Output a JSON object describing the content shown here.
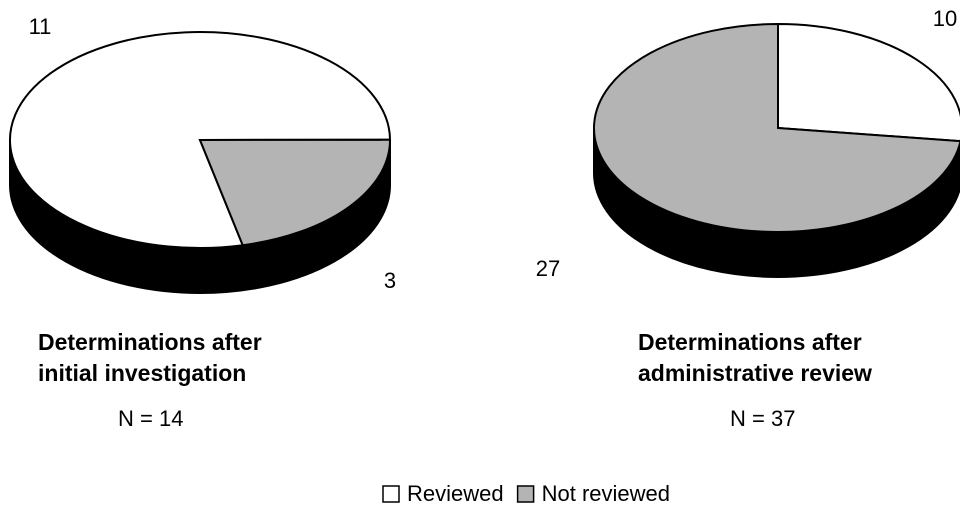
{
  "chart_data": [
    {
      "type": "pie",
      "title": [
        "Determinations after",
        "initial investigation"
      ],
      "subtitle": "N = 14",
      "categories": [
        "Reviewed",
        "Not reviewed"
      ],
      "values": [
        11,
        3
      ],
      "colors": [
        "#ffffff",
        "#b4b4b4"
      ],
      "startangle": 77
    },
    {
      "type": "pie",
      "title": [
        "Determinations after",
        "administrative review"
      ],
      "subtitle": "N = 37",
      "categories": [
        "Reviewed",
        "Not reviewed"
      ],
      "values": [
        10,
        27
      ],
      "colors": [
        "#ffffff",
        "#b4b4b4"
      ],
      "startangle": -90
    }
  ]
}
